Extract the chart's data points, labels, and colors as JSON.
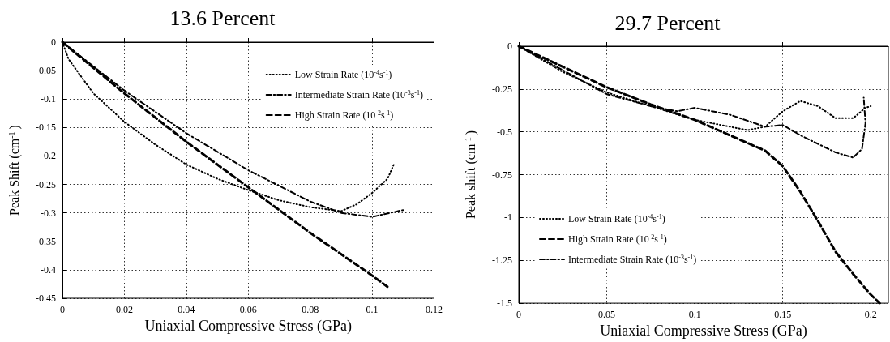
{
  "chart_data": [
    {
      "type": "line",
      "title": "13.6 Percent",
      "xlabel": "Uniaxial Compressive Stress (GPa)",
      "ylabel": "Peak Shift (cm$^{-1}$)",
      "xlim": [
        0,
        0.12
      ],
      "xticks": [
        0,
        0.02,
        0.04,
        0.06,
        0.08,
        0.1,
        0.12
      ],
      "ylim": [
        -0.45,
        0
      ],
      "yticks": [
        -0.45,
        -0.4,
        -0.35,
        -0.3,
        -0.25,
        -0.2,
        -0.15,
        -0.1,
        -0.05,
        0
      ],
      "grid": true,
      "legend": "top right",
      "marker": "none",
      "series": [
        {
          "name": "Low Strain Rate (10$^{-4}$s$^{-1}$)",
          "color": "#000000",
          "line_style": "dotted",
          "x": [
            0,
            0.002,
            0.01,
            0.02,
            0.03,
            0.04,
            0.05,
            0.06,
            0.07,
            0.08,
            0.09,
            0.095,
            0.1,
            0.105,
            0.107
          ],
          "values": [
            0,
            -0.03,
            -0.09,
            -0.14,
            -0.18,
            -0.215,
            -0.24,
            -0.26,
            -0.278,
            -0.29,
            -0.297,
            -0.285,
            -0.265,
            -0.24,
            -0.215
          ]
        },
        {
          "name": "Intermediate Strain Rate (10$^{-3}$s$^{-1}$)",
          "color": "#000000",
          "line_style": "dashdot",
          "x": [
            0,
            0.02,
            0.04,
            0.06,
            0.08,
            0.09,
            0.1,
            0.11
          ],
          "values": [
            0,
            -0.085,
            -0.16,
            -0.225,
            -0.28,
            -0.3,
            -0.307,
            -0.295
          ]
        },
        {
          "name": "High Strain Rate (10$^{-2}$s$^{-1}$)",
          "color": "#000000",
          "line_style": "dashed",
          "x": [
            0,
            0.02,
            0.04,
            0.06,
            0.08,
            0.1,
            0.105
          ],
          "values": [
            0,
            -0.09,
            -0.175,
            -0.255,
            -0.335,
            -0.41,
            -0.43
          ]
        }
      ]
    },
    {
      "type": "line",
      "title": "29.7 Percent",
      "xlabel": "Uniaxial Compressive Stress (GPa)",
      "ylabel": "Peak shift (cm$^{-1}$)",
      "xlim": [
        0,
        0.21
      ],
      "xticks": [
        0,
        0.05,
        0.1,
        0.15,
        0.2
      ],
      "ylim": [
        -1.5,
        0
      ],
      "yticks": [
        -1.5,
        -1.25,
        -1,
        -0.75,
        -0.5,
        -0.25,
        0
      ],
      "grid": true,
      "legend": "bottom left",
      "marker": "none",
      "series": [
        {
          "name": "Low Strain Rate (10$^{-4}$s$^{-1}$)",
          "color": "#000000",
          "line_style": "dotted",
          "x": [
            0,
            0.025,
            0.05,
            0.075,
            0.1,
            0.12,
            0.13,
            0.14,
            0.15,
            0.16,
            0.17,
            0.18,
            0.19,
            0.197,
            0.2
          ],
          "values": [
            0,
            -0.15,
            -0.27,
            -0.35,
            -0.43,
            -0.47,
            -0.49,
            -0.47,
            -0.38,
            -0.32,
            -0.35,
            -0.42,
            -0.42,
            -0.36,
            -0.35
          ]
        },
        {
          "name": "High Strain Rate (10$^{-2}$s$^{-1}$)",
          "color": "#000000",
          "line_style": "dashed",
          "x": [
            0,
            0.025,
            0.05,
            0.075,
            0.1,
            0.12,
            0.14,
            0.15,
            0.16,
            0.17,
            0.18,
            0.19,
            0.2,
            0.205
          ],
          "values": [
            0,
            -0.12,
            -0.24,
            -0.34,
            -0.43,
            -0.52,
            -0.61,
            -0.7,
            -0.85,
            -1.02,
            -1.2,
            -1.33,
            -1.45,
            -1.5
          ]
        },
        {
          "name": "Intermediate Strain Rate (10$^{-3}$s$^{-1}$)",
          "color": "#000000",
          "line_style": "dashdot",
          "x": [
            0,
            0.025,
            0.05,
            0.075,
            0.09,
            0.1,
            0.12,
            0.14,
            0.15,
            0.16,
            0.17,
            0.18,
            0.19,
            0.195,
            0.197,
            0.196
          ],
          "values": [
            0,
            -0.14,
            -0.28,
            -0.35,
            -0.38,
            -0.36,
            -0.4,
            -0.47,
            -0.46,
            -0.52,
            -0.57,
            -0.62,
            -0.65,
            -0.6,
            -0.45,
            -0.3
          ]
        }
      ]
    }
  ]
}
